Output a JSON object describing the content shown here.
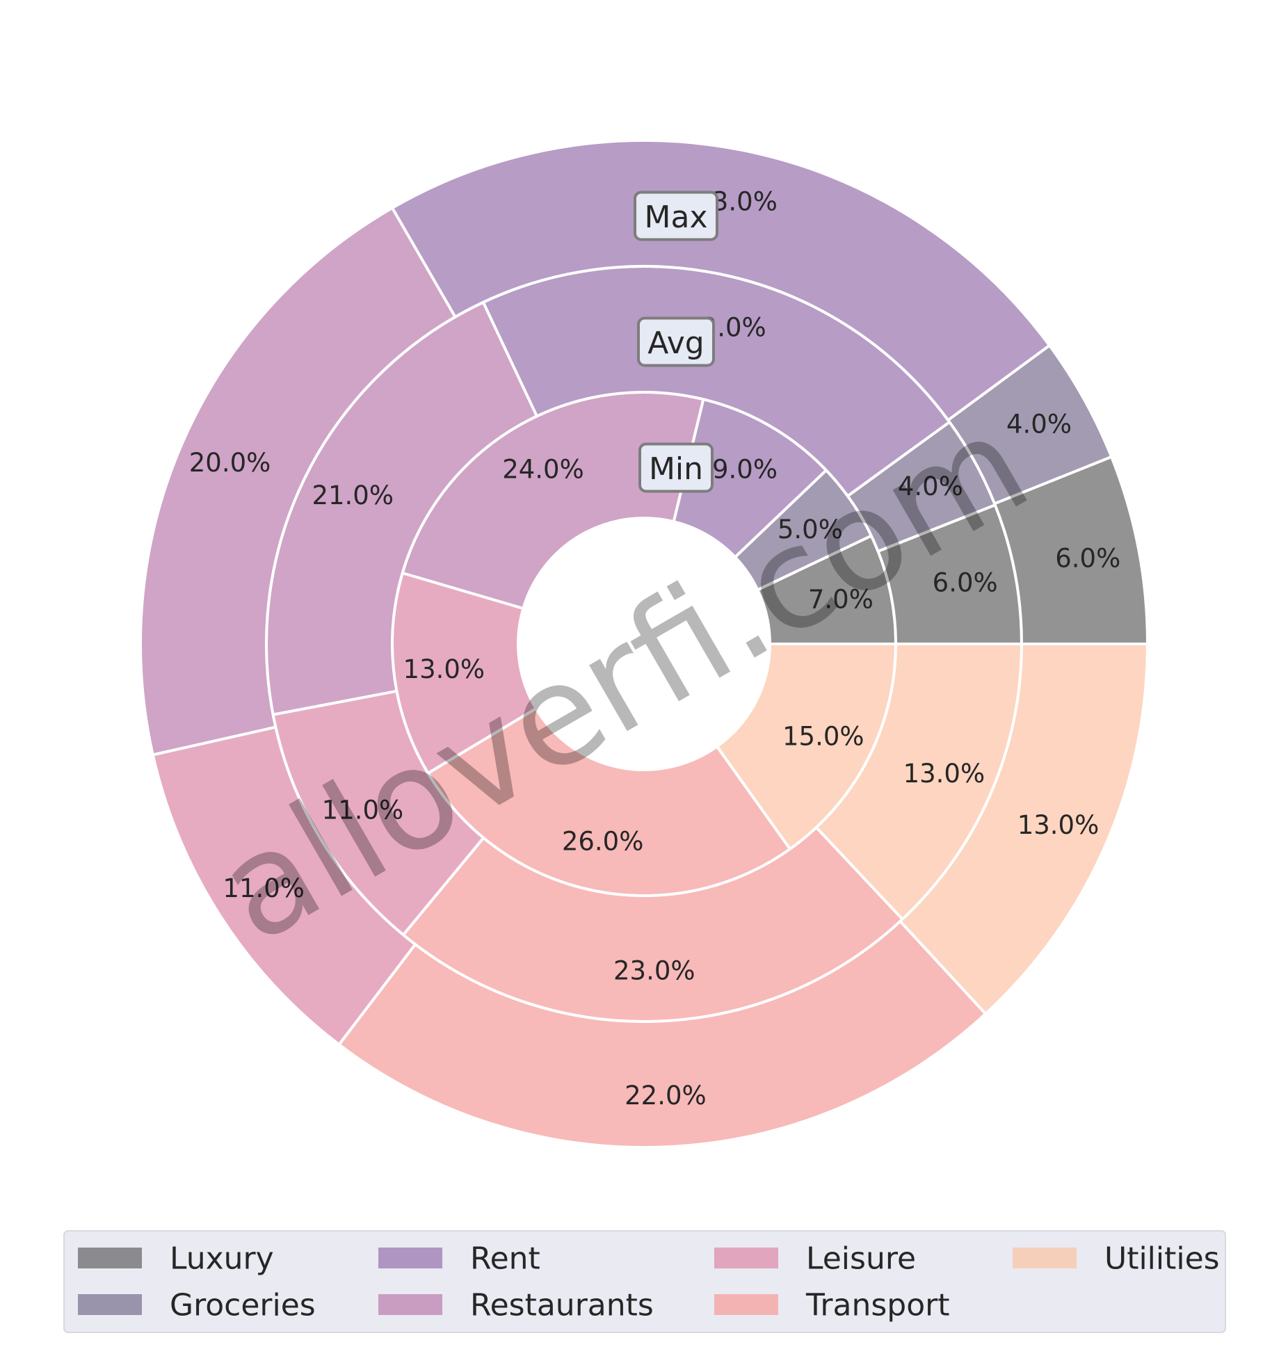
{
  "chart_data": {
    "type": "pie",
    "variant": "nested-donut",
    "categories": [
      "Luxury",
      "Groceries",
      "Rent",
      "Restaurants",
      "Leisure",
      "Transport",
      "Utilities"
    ],
    "colors": [
      "#939393",
      "#a39bb1",
      "#b79cc6",
      "#cfa4c6",
      "#e6abc1",
      "#f8b9b9",
      "#fdd5c0"
    ],
    "legend_colors": [
      "#8b8a8e",
      "#9a93ac",
      "#ae95c2",
      "#c99dc1",
      "#e1a5bd",
      "#f4b3b3",
      "#f6cfbb"
    ],
    "series": [
      {
        "name": "Min",
        "values": [
          7,
          5,
          9,
          24,
          13,
          26,
          15
        ],
        "labels": [
          "7.0%",
          "5.0%",
          "9.0%",
          "24.0%",
          "13.0%",
          "26.0%",
          "15.0%"
        ]
      },
      {
        "name": "Avg",
        "values": [
          6,
          4,
          22,
          21,
          11,
          23,
          13
        ],
        "labels": [
          "6.0%",
          "4.0%",
          "22.0%",
          "21.0%",
          "11.0%",
          "23.0%",
          "13.0%"
        ]
      },
      {
        "name": "Max",
        "values": [
          6,
          4,
          23,
          20,
          11,
          22,
          13
        ],
        "labels": [
          "6.0%",
          "4.0%",
          "23.0%",
          "20.0%",
          "11.0%",
          "22.0%",
          "13.0%"
        ]
      }
    ],
    "start_angle_deg": 0,
    "direction": "counterclockwise",
    "legend": {
      "placement": "bottom",
      "columns": 4,
      "entries": [
        "Luxury",
        "Groceries",
        "Rent",
        "Restaurants",
        "Leisure",
        "Transport",
        "Utilities"
      ]
    }
  },
  "watermark": "alloverfi.com"
}
